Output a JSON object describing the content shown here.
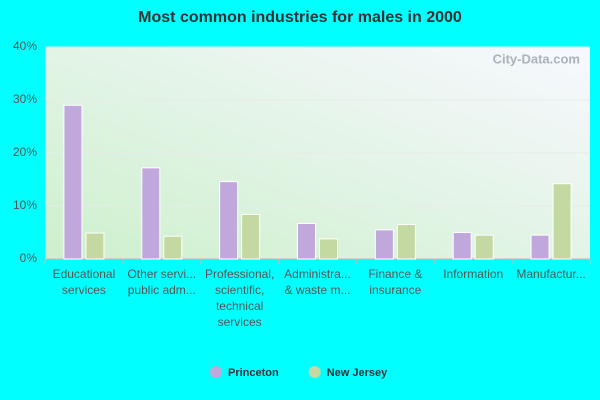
{
  "chart_data": {
    "type": "bar",
    "title": "Most common industries for males in 2000",
    "watermark": "City-Data.com",
    "categories": [
      [
        "Educational",
        "services"
      ],
      [
        "Other servi...",
        "public adm..."
      ],
      [
        "Professional,",
        "scientific,",
        "technical",
        "services"
      ],
      [
        "Administra...",
        "& waste m..."
      ],
      [
        "Finance &",
        "insurance"
      ],
      [
        "Information"
      ],
      [
        "Manufactur..."
      ]
    ],
    "series": [
      {
        "name": "Princeton",
        "color": "#c0a8dc",
        "values": [
          29,
          17.2,
          14.6,
          6.7,
          5.5,
          5.0,
          4.5
        ]
      },
      {
        "name": "New Jersey",
        "color": "#c4d8a2",
        "values": [
          4.9,
          4.3,
          8.4,
          3.8,
          6.5,
          4.5,
          14.2
        ]
      }
    ],
    "ylim": [
      0,
      40
    ],
    "yticks": [
      {
        "value": 0,
        "label": "0%"
      },
      {
        "value": 10,
        "label": "10%"
      },
      {
        "value": 20,
        "label": "20%"
      },
      {
        "value": 30,
        "label": "30%"
      },
      {
        "value": 40,
        "label": "40%"
      }
    ],
    "grid": true,
    "legend": "bottom"
  }
}
